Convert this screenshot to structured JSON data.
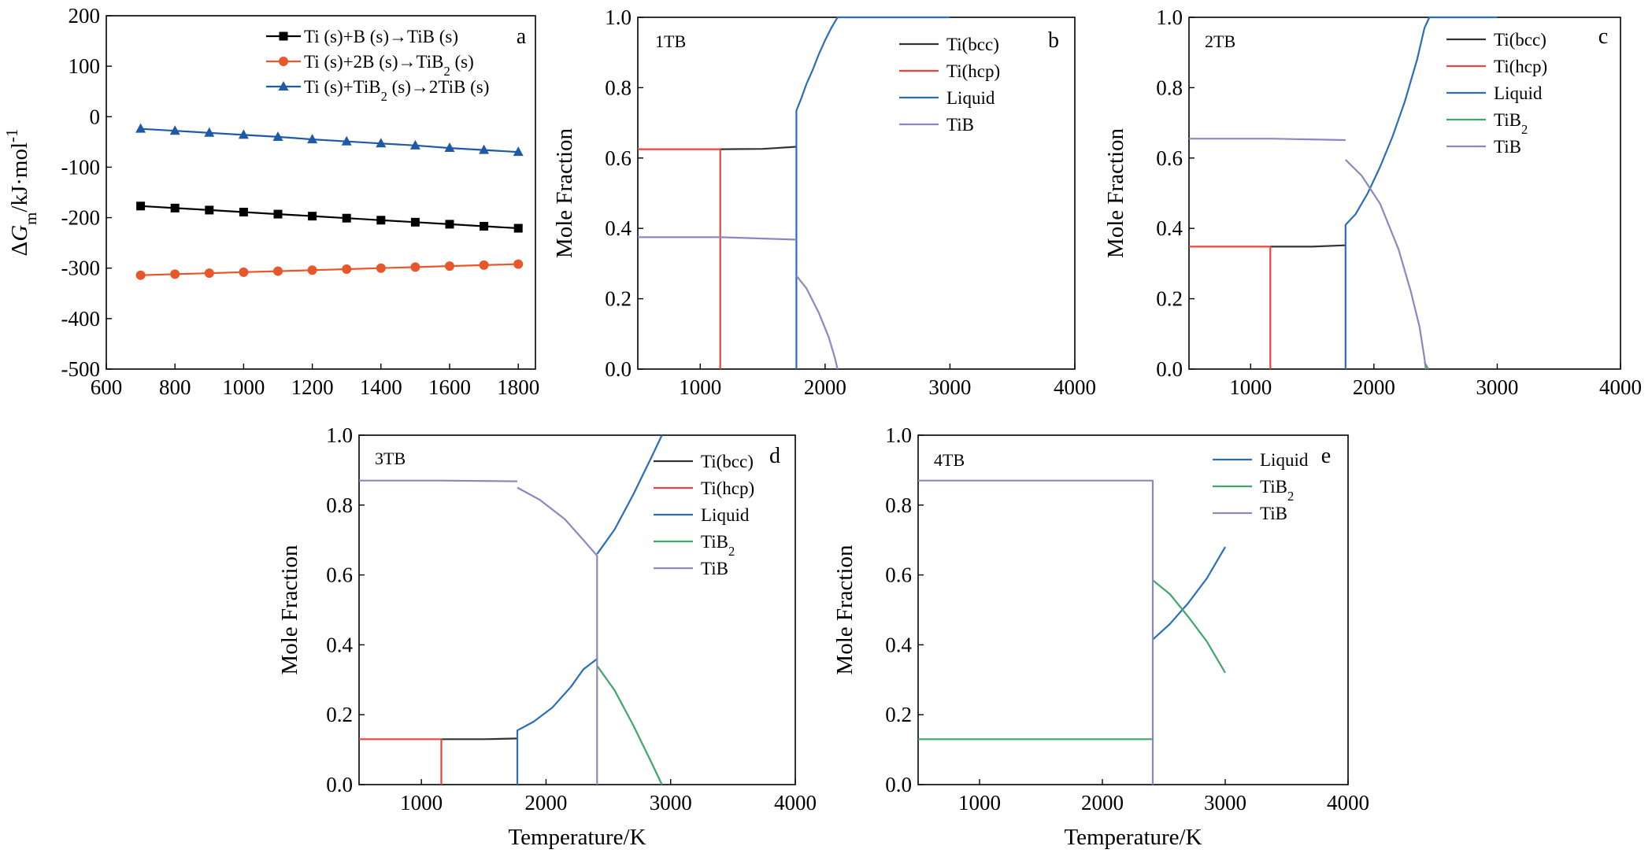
{
  "chart_data": [
    {
      "type": "line",
      "panel": "a",
      "xlim": [
        600,
        1850
      ],
      "ylim": [
        -500,
        200
      ],
      "x_ticks": [
        600,
        800,
        1000,
        1200,
        1400,
        1600,
        1800
      ],
      "y_ticks": [
        200,
        100,
        0,
        -100,
        -200,
        -300,
        -400,
        -500
      ],
      "xlabel": "",
      "ylabel": "ΔGm/kJ·mol-1",
      "ylabel_parts": {
        "pre": "Δ",
        "italic": "G",
        "sub": "m",
        "mid": "/kJ·mol",
        "sup": "-1"
      },
      "legend_position": "top-right",
      "series": [
        {
          "name": "Ti (s)+B (s)→TiB (s)",
          "name_parts": [
            {
              "t": "Ti (s)+B (s)→TiB (s)"
            }
          ],
          "color": "#000000",
          "marker": "square",
          "x": [
            700,
            800,
            900,
            1000,
            1100,
            1200,
            1300,
            1400,
            1500,
            1600,
            1700,
            1800
          ],
          "y": [
            -177,
            -181,
            -185,
            -189,
            -193,
            -197,
            -201,
            -205,
            -209,
            -213,
            -217,
            -221
          ]
        },
        {
          "name": "Ti (s)+2B (s)→TiB2 (s)",
          "name_parts": [
            {
              "t": "Ti (s)+2B (s)→TiB"
            },
            {
              "t": "2",
              "sub": true
            },
            {
              "t": " (s)"
            }
          ],
          "color": "#e8572a",
          "marker": "circle",
          "x": [
            700,
            800,
            900,
            1000,
            1100,
            1200,
            1300,
            1400,
            1500,
            1600,
            1700,
            1800
          ],
          "y": [
            -314,
            -312,
            -310,
            -308,
            -306,
            -304,
            -302,
            -300,
            -298,
            -296,
            -294,
            -292
          ]
        },
        {
          "name": "Ti (s)+TiB2 (s)→2TiB (s)",
          "name_parts": [
            {
              "t": "Ti (s)+TiB"
            },
            {
              "t": "2",
              "sub": true
            },
            {
              "t": " (s)→2TiB (s)"
            }
          ],
          "color": "#1f5aa6",
          "marker": "triangle",
          "x": [
            700,
            800,
            900,
            1000,
            1100,
            1200,
            1300,
            1400,
            1500,
            1600,
            1700,
            1800
          ],
          "y": [
            -24,
            -28,
            -32,
            -36,
            -40,
            -45,
            -49,
            -53,
            -57,
            -62,
            -66,
            -70
          ]
        }
      ]
    },
    {
      "type": "line",
      "panel": "b",
      "sample": "1TB",
      "xlim": [
        500,
        4000
      ],
      "ylim": [
        0,
        1
      ],
      "x_ticks": [
        1000,
        2000,
        3000,
        4000
      ],
      "y_ticks": [
        0.0,
        0.2,
        0.4,
        0.6,
        0.8,
        1.0
      ],
      "xlabel": "",
      "ylabel": "Mole Fraction",
      "legend_position": "top-right",
      "series": [
        {
          "name": "Ti(bcc)",
          "name_parts": [
            {
              "t": "Ti(bcc)"
            }
          ],
          "color": "#333333",
          "segments": [
            [
              [
                1160,
                0.625
              ],
              [
                1500,
                0.626
              ],
              [
                1770,
                0.632
              ]
            ]
          ]
        },
        {
          "name": "Ti(hcp)",
          "name_parts": [
            {
              "t": "Ti(hcp)"
            }
          ],
          "color": "#e8453c",
          "segments": [
            [
              [
                500,
                0.625
              ],
              [
                1160,
                0.625
              ],
              [
                1160,
                0
              ]
            ]
          ]
        },
        {
          "name": "Liquid",
          "name_parts": [
            {
              "t": "Liquid"
            }
          ],
          "color": "#2a6ebb",
          "segments": [
            [
              [
                1770,
                0
              ],
              [
                1770,
                0.735
              ],
              [
                1810,
                0.77
              ],
              [
                1850,
                0.81
              ],
              [
                1900,
                0.85
              ],
              [
                1950,
                0.895
              ],
              [
                2000,
                0.935
              ],
              [
                2050,
                0.97
              ],
              [
                2100,
                1.0
              ],
              [
                3000,
                1.0
              ]
            ]
          ]
        },
        {
          "name": "TiB",
          "name_parts": [
            {
              "t": "TiB"
            }
          ],
          "color": "#8e86c0",
          "segments": [
            [
              [
                500,
                0.375
              ],
              [
                1160,
                0.375
              ],
              [
                1770,
                0.368
              ]
            ],
            [
              [
                1770,
                0.265
              ],
              [
                1850,
                0.23
              ],
              [
                1950,
                0.16
              ],
              [
                2030,
                0.09
              ],
              [
                2080,
                0.03
              ],
              [
                2100,
                0
              ]
            ]
          ]
        }
      ]
    },
    {
      "type": "line",
      "panel": "c",
      "sample": "2TB",
      "xlim": [
        500,
        4000
      ],
      "ylim": [
        0,
        1
      ],
      "x_ticks": [
        1000,
        2000,
        3000,
        4000
      ],
      "y_ticks": [
        0.0,
        0.2,
        0.4,
        0.6,
        0.8,
        1.0
      ],
      "xlabel": "",
      "ylabel": "Mole Fraction",
      "legend_position": "top-right",
      "series": [
        {
          "name": "Ti(bcc)",
          "name_parts": [
            {
              "t": "Ti(bcc)"
            }
          ],
          "color": "#333333",
          "segments": [
            [
              [
                1160,
                0.348
              ],
              [
                1500,
                0.348
              ],
              [
                1770,
                0.352
              ]
            ]
          ]
        },
        {
          "name": "Ti(hcp)",
          "name_parts": [
            {
              "t": "Ti(hcp)"
            }
          ],
          "color": "#e8453c",
          "segments": [
            [
              [
                500,
                0.348
              ],
              [
                1160,
                0.348
              ],
              [
                1160,
                0
              ]
            ]
          ]
        },
        {
          "name": "Liquid",
          "name_parts": [
            {
              "t": "Liquid"
            }
          ],
          "color": "#2a6ebb",
          "segments": [
            [
              [
                1770,
                0
              ],
              [
                1770,
                0.41
              ],
              [
                1850,
                0.44
              ],
              [
                1950,
                0.5
              ],
              [
                2050,
                0.575
              ],
              [
                2150,
                0.66
              ],
              [
                2250,
                0.76
              ],
              [
                2350,
                0.88
              ],
              [
                2410,
                0.97
              ],
              [
                2450,
                1.0
              ],
              [
                3000,
                1.0
              ]
            ]
          ]
        },
        {
          "name": "TiB2",
          "name_parts": [
            {
              "t": "TiB"
            },
            {
              "t": "2",
              "sub": true
            }
          ],
          "color": "#3ea66b",
          "segments": [
            [
              [
                2410,
                0.02
              ],
              [
                2440,
                0
              ]
            ]
          ]
        },
        {
          "name": "TiB",
          "name_parts": [
            {
              "t": "TiB"
            }
          ],
          "color": "#8e86c0",
          "segments": [
            [
              [
                500,
                0.655
              ],
              [
                1160,
                0.655
              ],
              [
                1770,
                0.651
              ]
            ],
            [
              [
                1770,
                0.595
              ],
              [
                1900,
                0.55
              ],
              [
                2050,
                0.47
              ],
              [
                2200,
                0.34
              ],
              [
                2300,
                0.22
              ],
              [
                2370,
                0.12
              ],
              [
                2410,
                0.03
              ],
              [
                2420,
                0
              ]
            ]
          ]
        }
      ]
    },
    {
      "type": "line",
      "panel": "d",
      "sample": "3TB",
      "xlim": [
        500,
        4000
      ],
      "ylim": [
        0,
        1
      ],
      "x_ticks": [
        1000,
        2000,
        3000,
        4000
      ],
      "y_ticks": [
        0.0,
        0.2,
        0.4,
        0.6,
        0.8,
        1.0
      ],
      "xlabel": "Temperature/K",
      "ylabel": "Mole Fraction",
      "legend_position": "top-right",
      "series": [
        {
          "name": "Ti(bcc)",
          "name_parts": [
            {
              "t": "Ti(bcc)"
            }
          ],
          "color": "#333333",
          "segments": [
            [
              [
                1160,
                0.13
              ],
              [
                1500,
                0.13
              ],
              [
                1770,
                0.132
              ]
            ]
          ]
        },
        {
          "name": "Ti(hcp)",
          "name_parts": [
            {
              "t": "Ti(hcp)"
            }
          ],
          "color": "#e8453c",
          "segments": [
            [
              [
                500,
                0.13
              ],
              [
                1160,
                0.13
              ],
              [
                1160,
                0
              ]
            ]
          ]
        },
        {
          "name": "Liquid",
          "name_parts": [
            {
              "t": "Liquid"
            }
          ],
          "color": "#2a6ebb",
          "segments": [
            [
              [
                1770,
                0
              ],
              [
                1770,
                0.155
              ],
              [
                1900,
                0.18
              ],
              [
                2050,
                0.22
              ],
              [
                2200,
                0.28
              ],
              [
                2300,
                0.33
              ],
              [
                2410,
                0.36
              ]
            ],
            [
              [
                2410,
                0.66
              ],
              [
                2550,
                0.73
              ],
              [
                2700,
                0.83
              ],
              [
                2850,
                0.94
              ],
              [
                2930,
                1.0
              ]
            ]
          ]
        },
        {
          "name": "TiB2",
          "name_parts": [
            {
              "t": "TiB"
            },
            {
              "t": "2",
              "sub": true
            }
          ],
          "color": "#3ea66b",
          "segments": [
            [
              [
                2410,
                0.34
              ],
              [
                2550,
                0.27
              ],
              [
                2700,
                0.17
              ],
              [
                2850,
                0.06
              ],
              [
                2930,
                0
              ]
            ]
          ]
        },
        {
          "name": "TiB",
          "name_parts": [
            {
              "t": "TiB"
            }
          ],
          "color": "#8e86c0",
          "segments": [
            [
              [
                500,
                0.87
              ],
              [
                1160,
                0.87
              ],
              [
                1770,
                0.868
              ]
            ],
            [
              [
                1770,
                0.85
              ],
              [
                1950,
                0.815
              ],
              [
                2150,
                0.76
              ],
              [
                2300,
                0.7
              ],
              [
                2410,
                0.655
              ],
              [
                2410,
                0
              ]
            ]
          ]
        }
      ]
    },
    {
      "type": "line",
      "panel": "e",
      "sample": "4TB",
      "xlim": [
        500,
        4000
      ],
      "ylim": [
        0,
        1
      ],
      "x_ticks": [
        1000,
        2000,
        3000,
        4000
      ],
      "y_ticks": [
        0.0,
        0.2,
        0.4,
        0.6,
        0.8,
        1.0
      ],
      "xlabel": "Temperature/K",
      "ylabel": "Mole Fraction",
      "legend_position": "top-right",
      "series": [
        {
          "name": "Liquid",
          "name_parts": [
            {
              "t": "Liquid"
            }
          ],
          "color": "#2a6ebb",
          "segments": [
            [
              [
                2410,
                0.415
              ],
              [
                2550,
                0.46
              ],
              [
                2700,
                0.52
              ],
              [
                2850,
                0.59
              ],
              [
                3000,
                0.68
              ]
            ]
          ]
        },
        {
          "name": "TiB2",
          "name_parts": [
            {
              "t": "TiB"
            },
            {
              "t": "2",
              "sub": true
            }
          ],
          "color": "#3ea66b",
          "segments": [
            [
              [
                500,
                0.13
              ],
              [
                2410,
                0.13
              ]
            ],
            [
              [
                2410,
                0.585
              ],
              [
                2550,
                0.545
              ],
              [
                2700,
                0.48
              ],
              [
                2850,
                0.41
              ],
              [
                3000,
                0.32
              ]
            ]
          ]
        },
        {
          "name": "TiB",
          "name_parts": [
            {
              "t": "TiB"
            }
          ],
          "color": "#8e86c0",
          "segments": [
            [
              [
                500,
                0.87
              ],
              [
                2410,
                0.87
              ],
              [
                2410,
                0
              ]
            ]
          ]
        }
      ]
    }
  ]
}
